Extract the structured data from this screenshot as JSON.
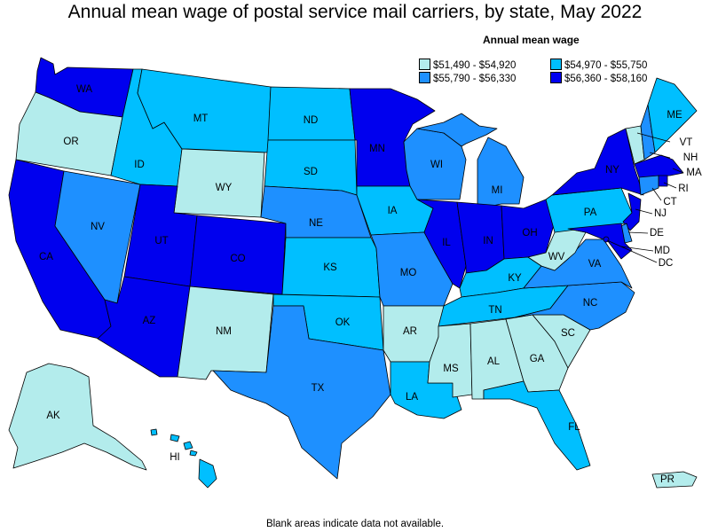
{
  "title": "Annual mean wage of postal service mail carriers, by state, May 2022",
  "legend": {
    "title": "Annual mean wage",
    "items": [
      {
        "label": "$51,490 - $54,920",
        "color": "#b3ecec"
      },
      {
        "label": "$54,970 - $55,750",
        "color": "#00bfff"
      },
      {
        "label": "$55,790 - $56,330",
        "color": "#1e90ff"
      },
      {
        "label": "$56,360 - $58,160",
        "color": "#0000ee"
      }
    ]
  },
  "footnote": "Blank areas indicate data not available.",
  "states": [
    {
      "code": "WA",
      "label": "WA",
      "bin": 3
    },
    {
      "code": "OR",
      "label": "OR",
      "bin": 0
    },
    {
      "code": "CA",
      "label": "CA",
      "bin": 3
    },
    {
      "code": "NV",
      "label": "NV",
      "bin": 2
    },
    {
      "code": "ID",
      "label": "ID",
      "bin": 1
    },
    {
      "code": "MT",
      "label": "MT",
      "bin": 1
    },
    {
      "code": "WY",
      "label": "WY",
      "bin": 0
    },
    {
      "code": "UT",
      "label": "UT",
      "bin": 3
    },
    {
      "code": "AZ",
      "label": "AZ",
      "bin": 3
    },
    {
      "code": "CO",
      "label": "CO",
      "bin": 3
    },
    {
      "code": "NM",
      "label": "NM",
      "bin": 0
    },
    {
      "code": "ND",
      "label": "ND",
      "bin": 1
    },
    {
      "code": "SD",
      "label": "SD",
      "bin": 1
    },
    {
      "code": "NE",
      "label": "NE",
      "bin": 2
    },
    {
      "code": "KS",
      "label": "KS",
      "bin": 1
    },
    {
      "code": "OK",
      "label": "OK",
      "bin": 1
    },
    {
      "code": "TX",
      "label": "TX",
      "bin": 2
    },
    {
      "code": "MN",
      "label": "MN",
      "bin": 3
    },
    {
      "code": "IA",
      "label": "IA",
      "bin": 1
    },
    {
      "code": "MO",
      "label": "MO",
      "bin": 2
    },
    {
      "code": "AR",
      "label": "AR",
      "bin": 0
    },
    {
      "code": "LA",
      "label": "LA",
      "bin": 1
    },
    {
      "code": "WI",
      "label": "WI",
      "bin": 2
    },
    {
      "code": "IL",
      "label": "IL",
      "bin": 3
    },
    {
      "code": "MI",
      "label": "MI",
      "bin": 2
    },
    {
      "code": "IN",
      "label": "IN",
      "bin": 3
    },
    {
      "code": "OH",
      "label": "OH",
      "bin": 3
    },
    {
      "code": "KY",
      "label": "KY",
      "bin": 1
    },
    {
      "code": "TN",
      "label": "TN",
      "bin": 1
    },
    {
      "code": "MS",
      "label": "MS",
      "bin": 0
    },
    {
      "code": "AL",
      "label": "AL",
      "bin": 0
    },
    {
      "code": "GA",
      "label": "GA",
      "bin": 0
    },
    {
      "code": "FL",
      "label": "FL",
      "bin": 1
    },
    {
      "code": "SC",
      "label": "SC",
      "bin": 0
    },
    {
      "code": "NC",
      "label": "NC",
      "bin": 2
    },
    {
      "code": "VA",
      "label": "VA",
      "bin": 2
    },
    {
      "code": "WV",
      "label": "WV",
      "bin": 0
    },
    {
      "code": "PA",
      "label": "PA",
      "bin": 1
    },
    {
      "code": "NY",
      "label": "NY",
      "bin": 3
    },
    {
      "code": "VT",
      "label": "VT",
      "bin": 0
    },
    {
      "code": "NH",
      "label": "NH",
      "bin": 2
    },
    {
      "code": "ME",
      "label": "ME",
      "bin": 1
    },
    {
      "code": "MA",
      "label": "MA",
      "bin": 3
    },
    {
      "code": "RI",
      "label": "RI",
      "bin": 3
    },
    {
      "code": "CT",
      "label": "CT",
      "bin": 2
    },
    {
      "code": "NJ",
      "label": "NJ",
      "bin": 3
    },
    {
      "code": "DE",
      "label": "DE",
      "bin": 2
    },
    {
      "code": "MD",
      "label": "MD",
      "bin": 3
    },
    {
      "code": "DC",
      "label": "DC",
      "bin": 3
    },
    {
      "code": "AK",
      "label": "AK",
      "bin": 0
    },
    {
      "code": "HI",
      "label": "HI",
      "bin": 1
    },
    {
      "code": "PR",
      "label": "PR",
      "bin": 0
    }
  ]
}
